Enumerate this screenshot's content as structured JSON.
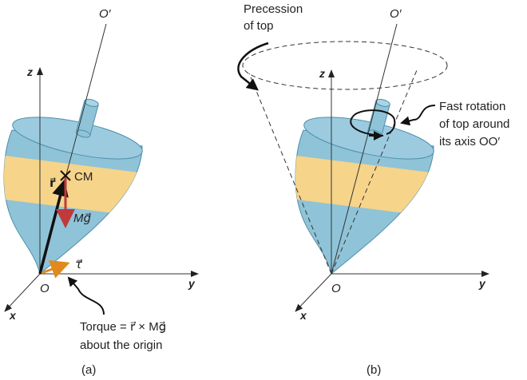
{
  "panel_a": {
    "caption": "(a)",
    "axis_z": "z",
    "axis_y": "y",
    "axis_x": "x",
    "origin": "O",
    "axis_top": "O′",
    "r_label": "r⃗",
    "cm_label": "CM",
    "weight_label": "Mg⃗",
    "torque_symbol": "τ⃗",
    "torque_line1": "Torque = r⃗ × Mg⃗",
    "torque_line2": "about the origin"
  },
  "panel_b": {
    "caption": "(b)",
    "axis_z": "z",
    "axis_y": "y",
    "axis_x": "x",
    "origin": "O",
    "axis_top": "O′",
    "precession_line1": "Precession",
    "precession_line2": "of top",
    "rotation_line1": "Fast rotation",
    "rotation_line2": "of top around",
    "rotation_line3": "its axis OO′"
  },
  "colors": {
    "body": "#8fc3d8",
    "band": "#f6d48a",
    "weight": "#c0393b",
    "torque": "#e08a1e"
  }
}
